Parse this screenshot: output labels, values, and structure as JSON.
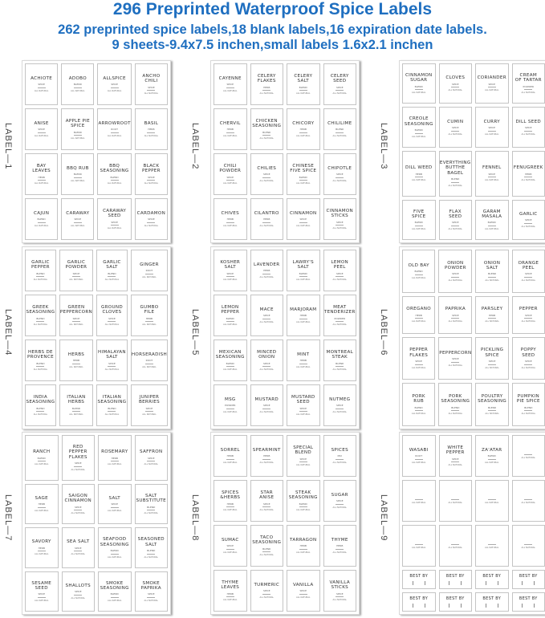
{
  "header": {
    "title": "296 Preprinted Waterproof Spice Labels",
    "subtitle_line1": "262 preprinted spice labels,18 blank labels,16 expiration date labels.",
    "subtitle_line2": "9 sheets-9.4x7.5 inchen,small labels 1.6x2.1 inchen"
  },
  "colors": {
    "title": "#1f6fc0",
    "label_border": "#c4c4c4",
    "text": "#333333"
  },
  "label_footer": "ALL NATURAL",
  "best_by_label": "BEST BY",
  "sheets": [
    {
      "side_label": "LABEL—1",
      "labels": [
        {
          "name": "ACHIOTE",
          "type": "SPICE"
        },
        {
          "name": "ADOBO",
          "type": "BLEND"
        },
        {
          "name": "ALLSPICE",
          "type": "SPICE"
        },
        {
          "name": "ANCHO\nCHILI",
          "type": "SPICE"
        },
        {
          "name": "ANISE",
          "type": "SPICE"
        },
        {
          "name": "APPLE PIE\nSPICE",
          "type": "BLEND"
        },
        {
          "name": "ARROWROOT",
          "type": "ROOT"
        },
        {
          "name": "BASIL",
          "type": "HERB"
        },
        {
          "name": "BAY\nLEAVES",
          "type": "HERB"
        },
        {
          "name": "BBQ RUB",
          "type": "BLEND"
        },
        {
          "name": "BBQ\nSEASONING",
          "type": "BLEND"
        },
        {
          "name": "BLACK\nPEPPER",
          "type": "SPICE"
        },
        {
          "name": "CAJUN",
          "type": "BLEND"
        },
        {
          "name": "CARAWAY",
          "type": "SPICE"
        },
        {
          "name": "CARAWAY\nSEED",
          "type": "SPICE"
        },
        {
          "name": "CARDAMON",
          "type": "SPICE"
        }
      ]
    },
    {
      "side_label": "LABEL—2",
      "labels": [
        {
          "name": "CAYENNE",
          "type": "SPICE"
        },
        {
          "name": "CELERY\nFLAKES",
          "type": "HERB"
        },
        {
          "name": "CELERY\nSALT",
          "type": "BLEND"
        },
        {
          "name": "CELERY\nSEED",
          "type": "SPICE"
        },
        {
          "name": "CHERVIL",
          "type": "HERB"
        },
        {
          "name": "CHICKEN\nSEASONING",
          "type": "BLEND"
        },
        {
          "name": "CHICORY",
          "type": "HERB"
        },
        {
          "name": "CHILILIME",
          "type": "BLEND"
        },
        {
          "name": "CHILI\nPOWDER",
          "type": "SPICE"
        },
        {
          "name": "CHILIES",
          "type": "SPICE"
        },
        {
          "name": "CHINESE\nFIVE SPICE",
          "type": "BLEND"
        },
        {
          "name": "CHIPOTLE",
          "type": "SPICE"
        },
        {
          "name": "CHIVES",
          "type": "HERB"
        },
        {
          "name": "CILANTRO",
          "type": "HERB"
        },
        {
          "name": "CINNAMON",
          "type": "SPICE"
        },
        {
          "name": "CINNAMON\nSTICKS",
          "type": "SPICE"
        }
      ]
    },
    {
      "side_label": "LABEL—3",
      "labels": [
        {
          "name": "CINNAMON\nSUGAR",
          "type": "BLEND"
        },
        {
          "name": "CLOVES",
          "type": "SPICE"
        },
        {
          "name": "CORIANDER",
          "type": "SPICE"
        },
        {
          "name": "CREAM\nOF TARTAR",
          "type": "POWDER"
        },
        {
          "name": "CREOLE\nSEASONING",
          "type": "BLEND"
        },
        {
          "name": "CUMIN",
          "type": "SPICE"
        },
        {
          "name": "CURRY",
          "type": "SPICE"
        },
        {
          "name": "DILL SEED",
          "type": "SPICE"
        },
        {
          "name": "DILL WEED",
          "type": "HERB"
        },
        {
          "name": "EVERYTHING\nBUTTHE\nBAGEL",
          "type": "BLEND"
        },
        {
          "name": "FENNEL",
          "type": "SPICE"
        },
        {
          "name": "FENUGREEK",
          "type": "HERB"
        },
        {
          "name": "FIVE\nSPICE",
          "type": "BLEND"
        },
        {
          "name": "FLAX\nSEED",
          "type": "SPICE"
        },
        {
          "name": "GARAM\nMASALA",
          "type": "BLEND"
        },
        {
          "name": "GARLIC",
          "type": "SPICE"
        }
      ]
    },
    {
      "side_label": "LABEL—4",
      "labels": [
        {
          "name": "GARLIC\nPEPPER",
          "type": "BLEND"
        },
        {
          "name": "GARLIC\nPOWDER",
          "type": "SPICE"
        },
        {
          "name": "GARLIC\nSALT",
          "type": "BLEND"
        },
        {
          "name": "GINGER",
          "type": "ROOT"
        },
        {
          "name": "GREEK\nSEASONING",
          "type": "BLEND"
        },
        {
          "name": "GREEN\nPEPPERCORN",
          "type": "SPICE"
        },
        {
          "name": "GROUND\nCLOVES",
          "type": "SPICE"
        },
        {
          "name": "GUMBO\nFILE",
          "type": "HERB"
        },
        {
          "name": "HERBS DE\nPROVENCE",
          "type": "BLEND"
        },
        {
          "name": "HERBS",
          "type": "HERB"
        },
        {
          "name": "HIMALAYAN\nSALT",
          "type": "SPICE"
        },
        {
          "name": "HORSERADISH",
          "type": "ROOT"
        },
        {
          "name": "INDIA\nSEASONING",
          "type": "BLEND"
        },
        {
          "name": "ITALIAN\nHERBS",
          "type": "BLEND"
        },
        {
          "name": "ITALIAN\nSEASONING",
          "type": "BLEND"
        },
        {
          "name": "JUNIPER\nBERRIES",
          "type": "SPICE"
        }
      ]
    },
    {
      "side_label": "LABEL—5",
      "labels": [
        {
          "name": "KOSHER\nSALT",
          "type": "SPICE"
        },
        {
          "name": "LAVENDER",
          "type": "HERB"
        },
        {
          "name": "LAWRY'S\nSALT",
          "type": "BLEND"
        },
        {
          "name": "LEMON\nPEEL",
          "type": "SPICE"
        },
        {
          "name": "LEMON\nPEPPER",
          "type": "BLEND"
        },
        {
          "name": "MACE",
          "type": "SPICE"
        },
        {
          "name": "MARJORAM",
          "type": "HERB"
        },
        {
          "name": "MEAT\nTENDERIZER",
          "type": "POWDER"
        },
        {
          "name": "MEXICAN\nSEASONING",
          "type": "BLEND"
        },
        {
          "name": "MINCED\nONION",
          "type": "SPICE"
        },
        {
          "name": "MINT",
          "type": "HERB"
        },
        {
          "name": "MONTREAL\nSTEAK",
          "type": "BLEND"
        },
        {
          "name": "MSG",
          "type": "POWDER"
        },
        {
          "name": "MUSTARD",
          "type": "SPICE"
        },
        {
          "name": "MUSTARD\nSEED",
          "type": "SPICE"
        },
        {
          "name": "NUTMEG",
          "type": "SPICE"
        }
      ]
    },
    {
      "side_label": "LABEL—6",
      "labels": [
        {
          "name": "OLD BAY",
          "type": "BLEND"
        },
        {
          "name": "ONION\nPOWDER",
          "type": "SPICE"
        },
        {
          "name": "ONION\nSALT",
          "type": "BLEND"
        },
        {
          "name": "ORANGE\nPEEL",
          "type": "SPICE"
        },
        {
          "name": "OREGANO",
          "type": "HERB"
        },
        {
          "name": "PAPRIKA",
          "type": "SPICE"
        },
        {
          "name": "PARSLEY",
          "type": "HERB"
        },
        {
          "name": "PEPPER",
          "type": "SPICE"
        },
        {
          "name": "PEPPER\nFLAKES",
          "type": "SPICE"
        },
        {
          "name": "PEPPERCORN",
          "type": "SPICE"
        },
        {
          "name": "PICKLING\nSPICE",
          "type": "SPICE"
        },
        {
          "name": "POPPY\nSEED",
          "type": "SPICE"
        },
        {
          "name": "PORK\nRUB",
          "type": "BLEND"
        },
        {
          "name": "PORK\nSEASONING",
          "type": "BLEND"
        },
        {
          "name": "POULTRY\nSEASONING",
          "type": "BLEND"
        },
        {
          "name": "PUMPKIN\nPIE SPICE",
          "type": "BLEND"
        }
      ]
    },
    {
      "side_label": "LABEL—7",
      "labels": [
        {
          "name": "RANCH",
          "type": "BLEND"
        },
        {
          "name": "RED\nPEPPER\nFLAKES",
          "type": "SPICE"
        },
        {
          "name": "ROSEMARY",
          "type": "HERB"
        },
        {
          "name": "SAFFRON",
          "type": "SPICE"
        },
        {
          "name": "SAGE",
          "type": "HERB"
        },
        {
          "name": "SAIGON\nCINNAMON",
          "type": "SPICE"
        },
        {
          "name": "SALT",
          "type": "SPICE"
        },
        {
          "name": "SALT\nSUBSTITUTE",
          "type": "BLEND"
        },
        {
          "name": "SAVORY",
          "type": "HERB"
        },
        {
          "name": "SEA SALT",
          "type": "SPICE"
        },
        {
          "name": "SEAFOOD\nSEASONING",
          "type": "BLEND"
        },
        {
          "name": "SEASONED\nSALT",
          "type": "BLEND"
        },
        {
          "name": "SESAME\nSEED",
          "type": "SPICE"
        },
        {
          "name": "SHALLOTS",
          "type": "SPICE"
        },
        {
          "name": "SMOKE\nSEASONING",
          "type": "BLEND"
        },
        {
          "name": "SMOKE\nPAPRIKA",
          "type": "SPICE"
        }
      ]
    },
    {
      "side_label": "LABEL—8",
      "labels": [
        {
          "name": "SORREL",
          "type": "HERB"
        },
        {
          "name": "SPEARMINT",
          "type": "HERB"
        },
        {
          "name": "SPECIAL\nBLEND",
          "type": "SPICE"
        },
        {
          "name": "SPICES",
          "type": "MIX"
        },
        {
          "name": "SPICES\n&HERBS",
          "type": "HERB"
        },
        {
          "name": "STAR\nANISE",
          "type": "SPICE"
        },
        {
          "name": "STEAK\nSEASONING",
          "type": "BLEND"
        },
        {
          "name": "SUGAR",
          "type": "SPICE"
        },
        {
          "name": "SUMAC",
          "type": "SPICE"
        },
        {
          "name": "TACO\nSEASONING",
          "type": "BLEND"
        },
        {
          "name": "TARRAGON",
          "type": "HERB"
        },
        {
          "name": "THYME",
          "type": "HERB"
        },
        {
          "name": "THYME\nLEAVES",
          "type": "HERB"
        },
        {
          "name": "TURMERIC",
          "type": "SPICE"
        },
        {
          "name": "VANILLA",
          "type": "SPICE"
        },
        {
          "name": "VANILLA\nSTICKS",
          "type": "SPICE"
        }
      ]
    },
    {
      "side_label": "LABEL—9",
      "labels": [
        {
          "name": "WASABI",
          "type": "ROOT"
        },
        {
          "name": "WHITE\nPEPPER",
          "type": "SPICE"
        },
        {
          "name": "ZA'ATAR",
          "type": "BLEND"
        },
        {
          "name": "",
          "type": ""
        },
        {
          "name": "",
          "type": ""
        },
        {
          "name": "",
          "type": ""
        },
        {
          "name": "",
          "type": ""
        },
        {
          "name": "",
          "type": ""
        },
        {
          "name": "",
          "type": ""
        },
        {
          "name": "",
          "type": ""
        },
        {
          "name": "",
          "type": ""
        },
        {
          "name": "",
          "type": ""
        }
      ],
      "best_by_count": 8
    }
  ]
}
